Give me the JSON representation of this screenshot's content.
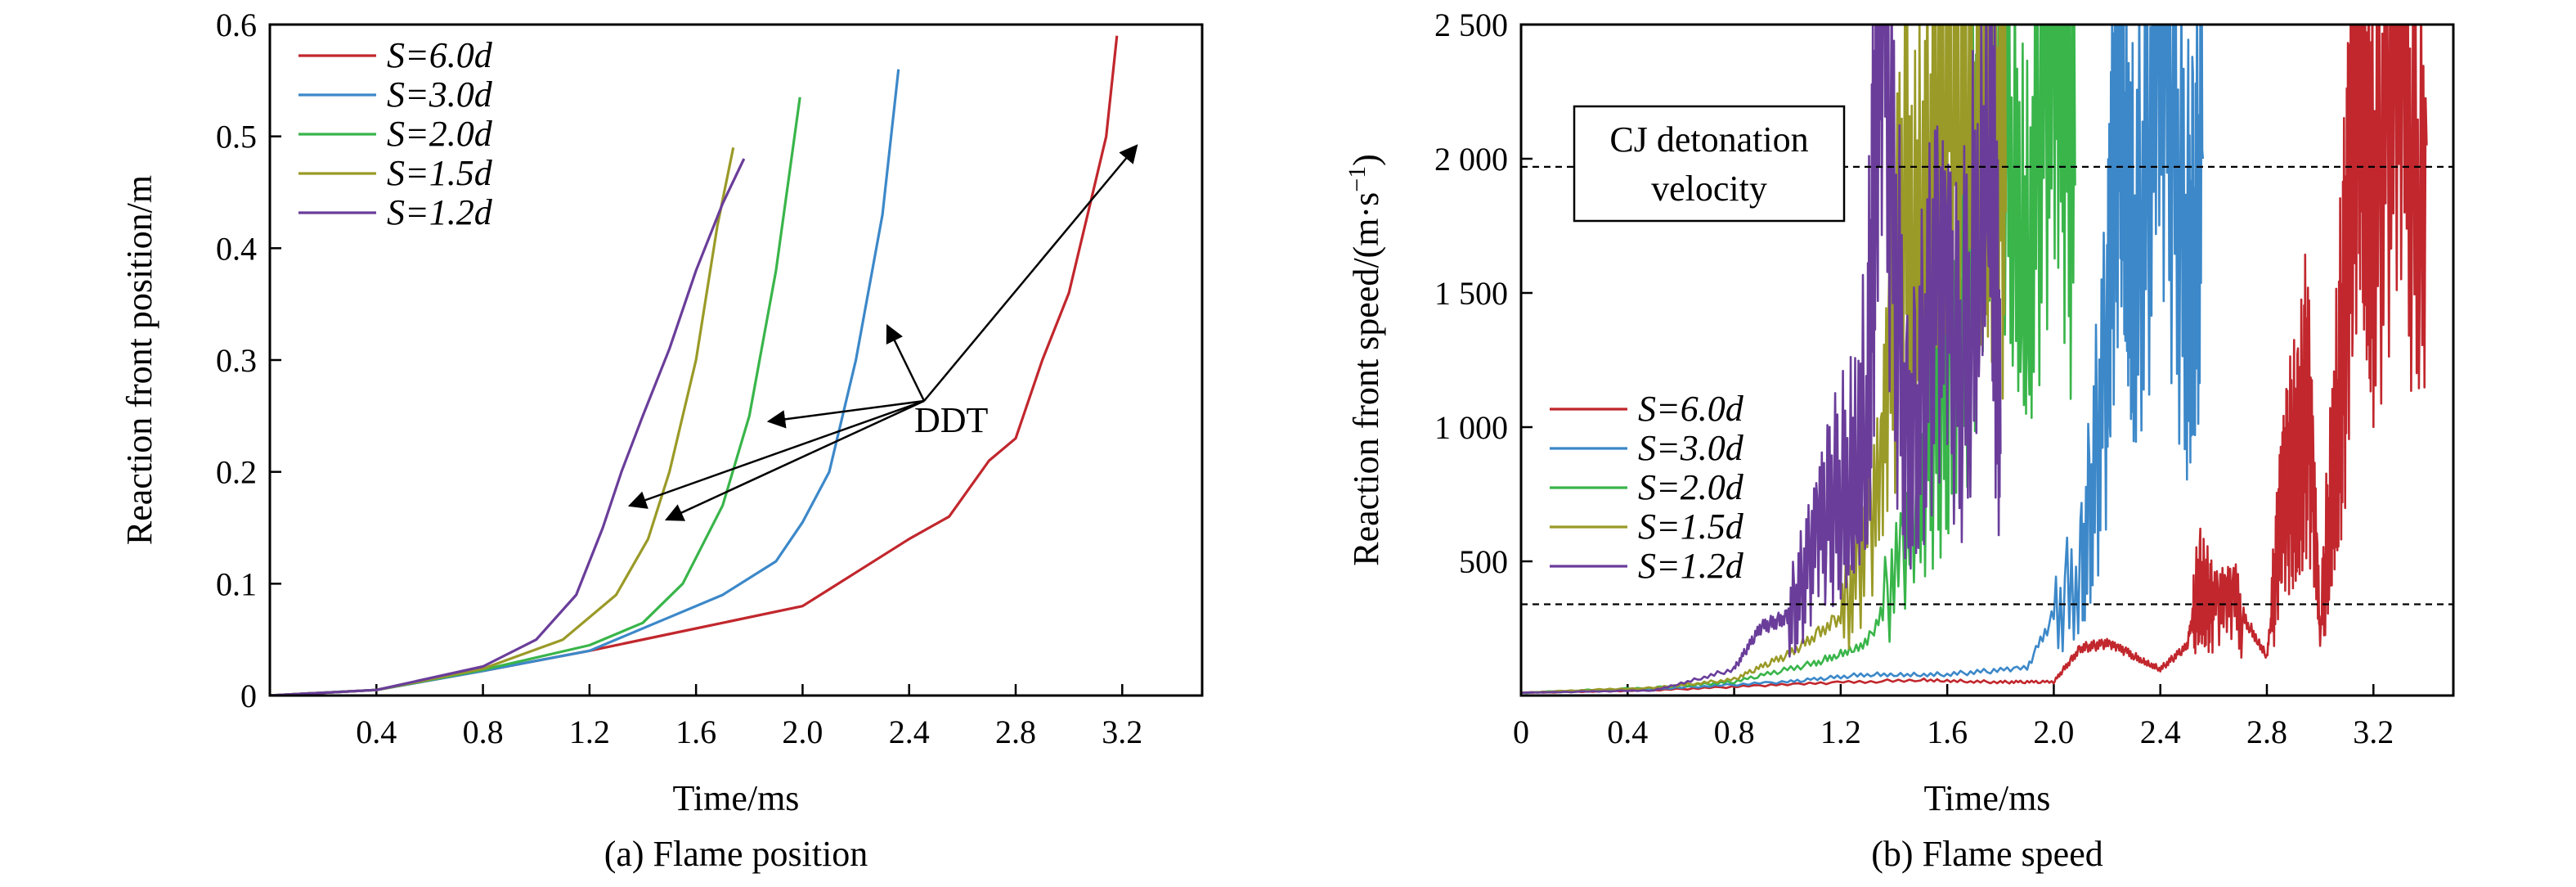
{
  "chart_data": [
    {
      "type": "line",
      "caption": "(a) Flame position",
      "xlabel": "Time/ms",
      "ylabel": "Reaction front position/m",
      "xlim": [
        0,
        3.5
      ],
      "ylim": [
        0,
        0.6
      ],
      "xticks": [
        "0.4",
        "0.8",
        "1.2",
        "1.6",
        "2.0",
        "2.4",
        "2.8",
        "3.2"
      ],
      "yticks": [
        "0",
        "0.1",
        "0.2",
        "0.3",
        "0.4",
        "0.5",
        "0.6"
      ],
      "legend_position": "top-left",
      "series": [
        {
          "name": "S=6.0d",
          "color": "#c1272d",
          "points": [
            [
              0,
              0
            ],
            [
              0.4,
              0.005
            ],
            [
              0.8,
              0.022
            ],
            [
              1.2,
              0.04
            ],
            [
              1.6,
              0.06
            ],
            [
              2.0,
              0.08
            ],
            [
              2.2,
              0.11
            ],
            [
              2.4,
              0.14
            ],
            [
              2.55,
              0.16
            ],
            [
              2.7,
              0.21
            ],
            [
              2.8,
              0.23
            ],
            [
              2.9,
              0.3
            ],
            [
              3.0,
              0.36
            ],
            [
              3.08,
              0.44
            ],
            [
              3.14,
              0.5
            ],
            [
              3.18,
              0.59
            ]
          ]
        },
        {
          "name": "S=3.0d",
          "color": "#3c88c9",
          "points": [
            [
              0,
              0
            ],
            [
              0.4,
              0.005
            ],
            [
              0.8,
              0.022
            ],
            [
              1.2,
              0.04
            ],
            [
              1.5,
              0.07
            ],
            [
              1.7,
              0.09
            ],
            [
              1.9,
              0.12
            ],
            [
              2.0,
              0.155
            ],
            [
              2.1,
              0.2
            ],
            [
              2.2,
              0.3
            ],
            [
              2.3,
              0.43
            ],
            [
              2.36,
              0.56
            ]
          ]
        },
        {
          "name": "S=2.0d",
          "color": "#39b54a",
          "points": [
            [
              0,
              0
            ],
            [
              0.4,
              0.005
            ],
            [
              0.8,
              0.023
            ],
            [
              1.2,
              0.045
            ],
            [
              1.4,
              0.065
            ],
            [
              1.55,
              0.1
            ],
            [
              1.7,
              0.17
            ],
            [
              1.8,
              0.25
            ],
            [
              1.9,
              0.38
            ],
            [
              1.99,
              0.535
            ]
          ]
        },
        {
          "name": "S=1.5d",
          "color": "#9a9a28",
          "points": [
            [
              0,
              0
            ],
            [
              0.4,
              0.005
            ],
            [
              0.8,
              0.024
            ],
            [
              1.1,
              0.05
            ],
            [
              1.3,
              0.09
            ],
            [
              1.42,
              0.14
            ],
            [
              1.5,
              0.2
            ],
            [
              1.6,
              0.3
            ],
            [
              1.68,
              0.42
            ],
            [
              1.74,
              0.49
            ]
          ]
        },
        {
          "name": "S=1.2d",
          "color": "#6a3d9a",
          "points": [
            [
              0,
              0
            ],
            [
              0.4,
              0.005
            ],
            [
              0.8,
              0.026
            ],
            [
              1.0,
              0.05
            ],
            [
              1.15,
              0.09
            ],
            [
              1.25,
              0.15
            ],
            [
              1.32,
              0.2
            ],
            [
              1.4,
              0.25
            ],
            [
              1.5,
              0.31
            ],
            [
              1.6,
              0.38
            ],
            [
              1.7,
              0.44
            ],
            [
              1.78,
              0.48
            ]
          ]
        }
      ],
      "annotations": [
        {
          "text": "DDT",
          "x": 2.6,
          "y": 0.25
        }
      ]
    },
    {
      "type": "line",
      "caption": "(b) Flame speed",
      "xlabel": "Time/ms",
      "ylabel": "Reaction front speed/(m·s",
      "ylabel_superscript": "−1",
      "ylabel_suffix": ")",
      "xlim": [
        0,
        3.5
      ],
      "ylim": [
        0,
        2500
      ],
      "xticks": [
        "0",
        "0.4",
        "0.8",
        "1.2",
        "1.6",
        "2.0",
        "2.4",
        "2.8",
        "3.2"
      ],
      "yticks": [
        "500",
        "1 000",
        "1 500",
        "2 000",
        "2 500"
      ],
      "reference_lines": [
        {
          "label": "CJ detonation velocity",
          "label_lines": [
            "CJ detonation",
            "velocity"
          ],
          "y": 1970
        },
        {
          "label": "",
          "y": 340
        }
      ],
      "legend_position": "middle-left",
      "series": [
        {
          "name": "S=6.0d",
          "color": "#c1272d",
          "points": [
            [
              0,
              10
            ],
            [
              0.5,
              20
            ],
            [
              1.0,
              40
            ],
            [
              1.5,
              60
            ],
            [
              1.8,
              50
            ],
            [
              2.0,
              50
            ],
            [
              2.1,
              180
            ],
            [
              2.2,
              190
            ],
            [
              2.3,
              150
            ],
            [
              2.4,
              100
            ],
            [
              2.5,
              180
            ],
            [
              2.55,
              450
            ],
            [
              2.6,
              300
            ],
            [
              2.7,
              320
            ],
            [
              2.8,
              150
            ],
            [
              2.85,
              600
            ],
            [
              2.9,
              900
            ],
            [
              2.95,
              1100
            ],
            [
              3.0,
              200
            ],
            [
              3.05,
              1000
            ],
            [
              3.1,
              1500
            ],
            [
              3.15,
              2400
            ],
            [
              3.2,
              1900
            ],
            [
              3.3,
              2000
            ],
            [
              3.4,
              2050
            ]
          ]
        },
        {
          "name": "S=3.0d",
          "color": "#3c88c9",
          "points": [
            [
              0,
              10
            ],
            [
              0.5,
              25
            ],
            [
              1.0,
              50
            ],
            [
              1.3,
              80
            ],
            [
              1.6,
              80
            ],
            [
              1.9,
              100
            ],
            [
              2.1,
              500
            ],
            [
              2.2,
              1200
            ],
            [
              2.25,
              2400
            ],
            [
              2.3,
              1800
            ],
            [
              2.4,
              2100
            ],
            [
              2.5,
              1700
            ],
            [
              2.56,
              2000
            ]
          ]
        },
        {
          "name": "S=2.0d",
          "color": "#39b54a",
          "points": [
            [
              0,
              10
            ],
            [
              0.5,
              30
            ],
            [
              0.8,
              50
            ],
            [
              1.1,
              120
            ],
            [
              1.3,
              200
            ],
            [
              1.5,
              600
            ],
            [
              1.6,
              1300
            ],
            [
              1.7,
              1800
            ],
            [
              1.8,
              2300
            ],
            [
              1.9,
              1900
            ],
            [
              2.0,
              2100
            ],
            [
              2.08,
              1900
            ]
          ]
        },
        {
          "name": "S=1.5d",
          "color": "#9a9a28",
          "points": [
            [
              0,
              10
            ],
            [
              0.5,
              30
            ],
            [
              0.8,
              60
            ],
            [
              1.0,
              150
            ],
            [
              1.2,
              300
            ],
            [
              1.35,
              700
            ],
            [
              1.45,
              1900
            ],
            [
              1.55,
              2200
            ],
            [
              1.65,
              2000
            ],
            [
              1.75,
              2250
            ],
            [
              1.82,
              1800
            ]
          ]
        },
        {
          "name": "S=1.2d",
          "color": "#6a3d9a",
          "points": [
            [
              0,
              10
            ],
            [
              0.5,
              20
            ],
            [
              0.8,
              100
            ],
            [
              0.9,
              250
            ],
            [
              1.0,
              300
            ],
            [
              1.1,
              500
            ],
            [
              1.2,
              800
            ],
            [
              1.3,
              1200
            ],
            [
              1.35,
              2400
            ],
            [
              1.45,
              1000
            ],
            [
              1.55,
              1400
            ],
            [
              1.65,
              1200
            ],
            [
              1.76,
              2450
            ],
            [
              1.8,
              900
            ]
          ]
        }
      ]
    }
  ]
}
